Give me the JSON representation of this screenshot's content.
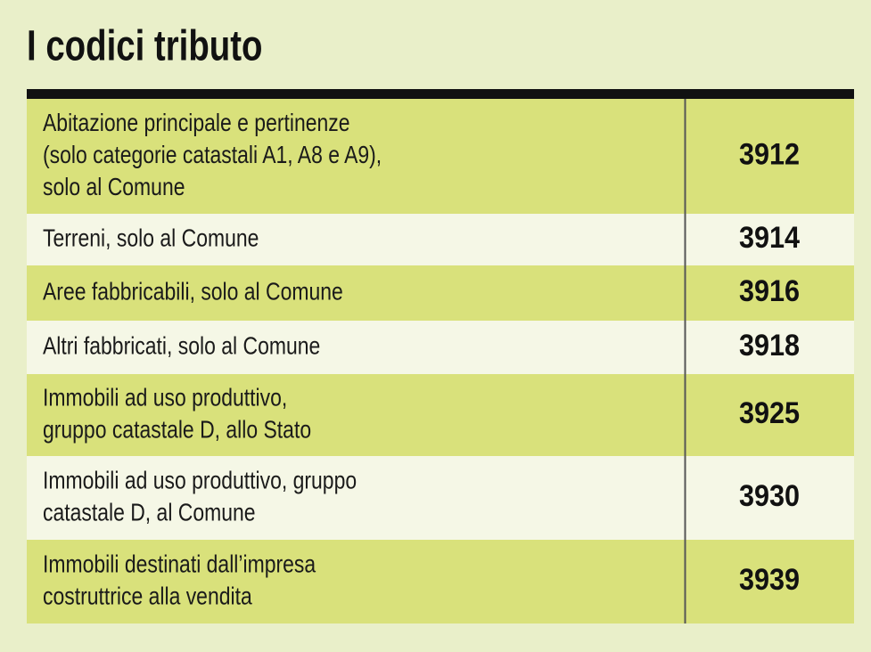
{
  "title": "I codici tributo",
  "table": {
    "rows": [
      {
        "lines": [
          "Abitazione principale e pertinenze",
          "(solo categorie catastali A1, A8 e A9),",
          "solo al Comune"
        ],
        "code": "3912"
      },
      {
        "lines": [
          "Terreni, solo al Comune"
        ],
        "code": "3914"
      },
      {
        "lines": [
          "Aree fabbricabili, solo al Comune"
        ],
        "code": "3916"
      },
      {
        "lines": [
          "Altri fabbricati, solo al Comune"
        ],
        "code": "3918"
      },
      {
        "lines": [
          "Immobili ad uso produttivo,",
          "gruppo catastale D, allo Stato"
        ],
        "code": "3925"
      },
      {
        "lines": [
          "Immobili ad uso produttivo, gruppo",
          "catastale D, al Comune"
        ],
        "code": "3930"
      },
      {
        "lines": [
          "Immobili destinati dall’impresa",
          "costruttrice alla vendita"
        ],
        "code": "3939"
      }
    ]
  }
}
